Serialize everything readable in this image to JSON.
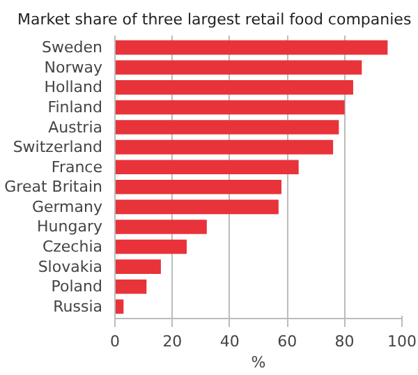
{
  "chart_data": {
    "type": "bar",
    "orientation": "horizontal",
    "title": "Market share of three largest retail food companies",
    "categories": [
      "Sweden",
      "Norway",
      "Holland",
      "Finland",
      "Austria",
      "Switzerland",
      "France",
      "Great Britain",
      "Germany",
      "Hungary",
      "Czechia",
      "Slovakia",
      "Poland",
      "Russia"
    ],
    "values": [
      95,
      86,
      83,
      80,
      78,
      76,
      64,
      58,
      57,
      32,
      25,
      16,
      11,
      3
    ],
    "color": "#e8333a",
    "xlim": [
      0,
      100
    ],
    "xticks": [
      0,
      20,
      40,
      60,
      80,
      100
    ],
    "xlabel": "%",
    "grid": "x"
  }
}
